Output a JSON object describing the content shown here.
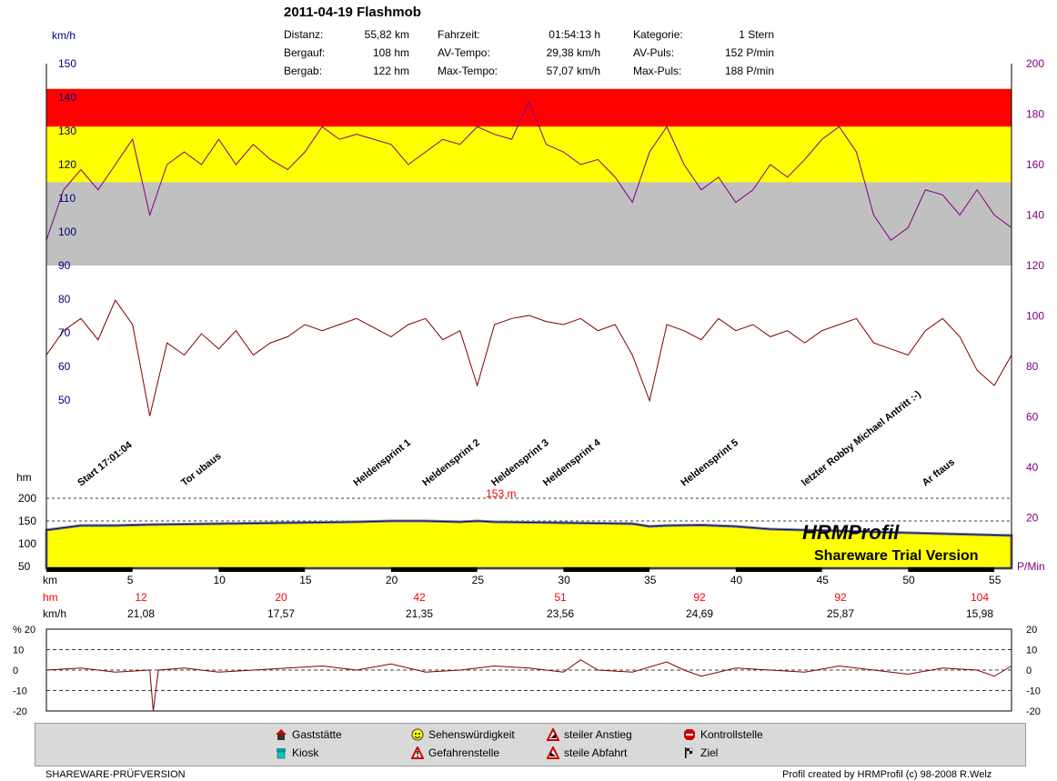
{
  "header": {
    "title": "2011-04-19 Flashmob",
    "stats": [
      {
        "label": "Distanz:",
        "value": "55,82 km"
      },
      {
        "label": "Bergauf:",
        "value": "108 hm"
      },
      {
        "label": "Bergab:",
        "value": "122 hm"
      },
      {
        "label": "Fahrzeit:",
        "value": "01:54:13 h"
      },
      {
        "label": "AV-Tempo:",
        "value": "29,38 km/h"
      },
      {
        "label": "Max-Tempo:",
        "value": "57,07 km/h"
      },
      {
        "label": "Kategorie:",
        "value": "1 Stern"
      },
      {
        "label": "AV-Puls:",
        "value": "152 P/min"
      },
      {
        "label": "Max-Puls:",
        "value": "188 P/min"
      }
    ]
  },
  "units": {
    "speed": "km/h",
    "height": "hm",
    "pulse": "P/Min",
    "percent": "%",
    "km": "km",
    "row_hm": "hm",
    "row_kmh": "km/h"
  },
  "colors": {
    "zone_red": "#ff0000",
    "zone_yellow": "#ffff00",
    "zone_gray": "#c0c0c0",
    "pulse_line": "#800080",
    "speed_line": "#800000",
    "profile_fill": "#ffff00",
    "altitude_line": "#000080",
    "axis_left_text": "#000080",
    "axis_right_text": "#800080",
    "hm_row_text": "#ff0000",
    "max_label_text": "#ff0000",
    "legend_bg": "#d9d9d9"
  },
  "chart_data": [
    {
      "type": "line",
      "name": "main-profile",
      "x_unit": "km",
      "xlim": [
        0,
        56
      ],
      "x_ticks": [
        5,
        10,
        15,
        20,
        25,
        30,
        35,
        40,
        45,
        50,
        55
      ],
      "left_axis": {
        "label": "km/h",
        "ticks": [
          150,
          140,
          130,
          120,
          110,
          100,
          90,
          80,
          70,
          60,
          50
        ]
      },
      "right_axis": {
        "ticks": [
          200,
          180,
          160,
          140,
          120,
          100,
          80,
          60,
          40,
          20
        ],
        "unit_label": "P/Min"
      },
      "height_axis": {
        "label": "hm",
        "ticks": [
          200,
          150,
          100,
          50
        ]
      },
      "pulse_zones": [
        {
          "from": 175,
          "to": 190,
          "color": "#ff0000"
        },
        {
          "from": 153,
          "to": 175,
          "color": "#ffff00"
        },
        {
          "from": 120,
          "to": 153,
          "color": "#c0c0c0"
        }
      ],
      "series": [
        {
          "name": "Puls",
          "unit": "P/min",
          "x": [
            0,
            1,
            2,
            3,
            4,
            5,
            6,
            7,
            8,
            9,
            10,
            11,
            12,
            13,
            14,
            15,
            16,
            17,
            18,
            19,
            20,
            21,
            22,
            23,
            24,
            25,
            26,
            27,
            28,
            29,
            30,
            31,
            32,
            33,
            34,
            35,
            36,
            37,
            38,
            39,
            40,
            41,
            42,
            43,
            44,
            45,
            46,
            47,
            48,
            49,
            50,
            51,
            52,
            53,
            54,
            55,
            56
          ],
          "values": [
            130,
            150,
            158,
            150,
            160,
            170,
            140,
            160,
            165,
            160,
            170,
            160,
            168,
            162,
            158,
            165,
            175,
            170,
            172,
            170,
            168,
            160,
            165,
            170,
            168,
            175,
            172,
            170,
            185,
            168,
            165,
            160,
            162,
            155,
            145,
            165,
            175,
            160,
            150,
            155,
            145,
            150,
            160,
            155,
            162,
            170,
            175,
            165,
            140,
            130,
            135,
            150,
            148,
            140,
            150,
            140,
            135
          ]
        },
        {
          "name": "Tempo",
          "unit": "km/h",
          "x": [
            0,
            1,
            2,
            3,
            4,
            5,
            6,
            7,
            8,
            9,
            10,
            11,
            12,
            13,
            14,
            15,
            16,
            17,
            18,
            19,
            20,
            21,
            22,
            23,
            24,
            25,
            26,
            27,
            28,
            29,
            30,
            31,
            32,
            33,
            34,
            35,
            36,
            37,
            38,
            39,
            40,
            41,
            42,
            43,
            44,
            45,
            46,
            47,
            48,
            49,
            50,
            51,
            52,
            53,
            54,
            55,
            56
          ],
          "values": [
            70,
            78,
            82,
            75,
            88,
            80,
            50,
            74,
            70,
            77,
            72,
            78,
            70,
            74,
            76,
            80,
            78,
            80,
            82,
            79,
            76,
            80,
            82,
            75,
            78,
            60,
            80,
            82,
            83,
            81,
            80,
            82,
            78,
            80,
            70,
            55,
            80,
            78,
            75,
            82,
            78,
            80,
            76,
            78,
            74,
            78,
            80,
            82,
            74,
            72,
            70,
            78,
            82,
            76,
            65,
            60,
            70
          ]
        },
        {
          "name": "Höhe",
          "unit": "hm",
          "x": [
            0,
            2,
            4,
            6,
            8,
            10,
            12,
            14,
            16,
            18,
            20,
            22,
            24,
            25,
            26,
            28,
            30,
            32,
            34,
            35,
            36,
            38,
            40,
            42,
            44,
            46,
            48,
            50,
            52,
            54,
            56
          ],
          "values": [
            130,
            140,
            140,
            142,
            143,
            144,
            145,
            146,
            147,
            148,
            150,
            150,
            148,
            150,
            148,
            147,
            146,
            145,
            144,
            138,
            140,
            141,
            138,
            132,
            130,
            128,
            126,
            124,
            122,
            120,
            118
          ]
        }
      ],
      "max_height_label": "153 m",
      "annotations": [
        "Start 17:01:04",
        "Tor ubaus",
        "Heldensprint 1",
        "Heldensprint 2",
        "Heldensprint 3",
        "Heldensprint 4",
        "Heldensprint 5",
        "letzter Robby Michael Antritt :-)",
        "Ar   ftaus"
      ],
      "watermark": [
        "HRMProfil",
        "Shareware Trial  Version"
      ],
      "segment_table": {
        "km_labels": [
          "5",
          "10",
          "15",
          "20",
          "25",
          "30",
          "35",
          "40",
          "45",
          "50",
          "55"
        ],
        "hm": [
          "12",
          "20",
          "42",
          "51",
          "92",
          "92",
          "104"
        ],
        "kmh": [
          "21,08",
          "17,57",
          "21,35",
          "23,56",
          "24,69",
          "25,87",
          "15,98"
        ]
      }
    },
    {
      "type": "line",
      "name": "gradient",
      "y_unit": "%",
      "ylim": [
        -20,
        20
      ],
      "y_ticks": [
        20,
        10,
        0,
        -10,
        -20
      ],
      "y_tick_labels": [
        "% 20",
        "10",
        "0",
        "-10",
        "-20"
      ],
      "series": [
        {
          "name": "Steigung",
          "x": [
            0,
            2,
            4,
            6,
            6.2,
            6.5,
            8,
            10,
            12,
            14,
            16,
            18,
            20,
            22,
            24,
            26,
            28,
            30,
            31,
            32,
            34,
            36,
            37,
            38,
            40,
            42,
            44,
            46,
            48,
            50,
            52,
            54,
            55,
            56
          ],
          "values": [
            0,
            1,
            -1,
            0,
            -20,
            0,
            1,
            -1,
            0,
            1,
            2,
            0,
            3,
            -1,
            0,
            2,
            1,
            -1,
            5,
            0,
            -1,
            4,
            0,
            -3,
            1,
            0,
            -1,
            2,
            0,
            -2,
            1,
            0,
            -3,
            2
          ]
        }
      ]
    }
  ],
  "legend": {
    "items": [
      {
        "icon": "restaurant-icon",
        "label": "Gaststätte"
      },
      {
        "icon": "kiosk-icon",
        "label": "Kiosk"
      },
      {
        "icon": "sight-icon",
        "label": "Sehenswürdigkeit"
      },
      {
        "icon": "danger-icon",
        "label": "Gefahrenstelle"
      },
      {
        "icon": "steep-climb-icon",
        "label": "steiler Anstieg"
      },
      {
        "icon": "steep-descent-icon",
        "label": "steile Abfahrt"
      },
      {
        "icon": "stop-icon",
        "label": "Kontrollstelle"
      },
      {
        "icon": "finish-flag-icon",
        "label": "Ziel"
      }
    ]
  },
  "footer": {
    "left": "SHAREWARE-PRÜFVERSION",
    "right": "Profil created by HRMProfil (c) 98-2008 R.Welz"
  }
}
